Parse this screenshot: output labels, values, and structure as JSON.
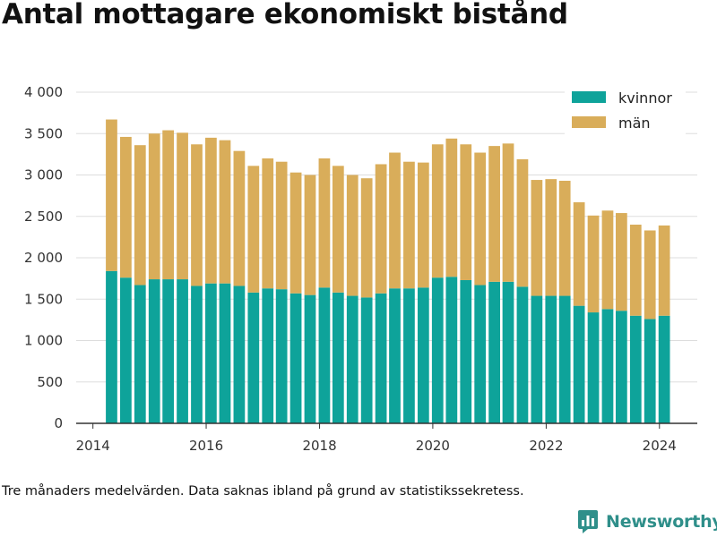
{
  "title": "Antal mottagare ekonomiskt bistånd",
  "caption": "Tre månaders medelvärden. Data saknas ibland på grund av statistikssekretess.",
  "brand": {
    "name": "Newsworthy",
    "icon": "newsworthy-logo-icon"
  },
  "colors": {
    "kvinnor": "#0ea39a",
    "man": "#d9ad5a",
    "grid": "#dddddd",
    "axis": "#333333",
    "brand": "#2f8f8a"
  },
  "chart_data": {
    "type": "bar",
    "stacked": true,
    "x_tick_labels": [
      "2014",
      "2016",
      "2018",
      "2020",
      "2022",
      "2024"
    ],
    "y_tick_labels": [
      "0",
      "500",
      "1 000",
      "1 500",
      "2 000",
      "2 500",
      "3 000",
      "3 500",
      "4 000"
    ],
    "ylim": [
      0,
      4000
    ],
    "xlim": [
      "2013-09-15",
      "2024-09-01"
    ],
    "grid": true,
    "legend_position": "top-right",
    "dates": [
      "2014-05-01",
      "2014-08-01",
      "2014-11-01",
      "2015-02-01",
      "2015-05-01",
      "2015-08-01",
      "2015-11-01",
      "2016-02-01",
      "2016-05-01",
      "2016-08-01",
      "2016-11-01",
      "2017-02-01",
      "2017-05-01",
      "2017-08-01",
      "2017-11-01",
      "2018-02-01",
      "2018-05-01",
      "2018-08-01",
      "2018-11-01",
      "2019-02-01",
      "2019-05-01",
      "2019-08-01",
      "2019-11-01",
      "2020-02-01",
      "2020-05-01",
      "2020-08-01",
      "2020-11-01",
      "2021-02-01",
      "2021-05-01",
      "2021-08-01",
      "2021-11-01",
      "2022-02-01",
      "2022-05-01",
      "2022-08-01",
      "2022-11-01",
      "2023-02-01",
      "2023-05-01",
      "2023-08-01",
      "2023-11-01",
      "2024-02-01"
    ],
    "series": [
      {
        "name": "kvinnor",
        "color": "#0ea39a",
        "values": [
          1840,
          1760,
          1670,
          1740,
          1740,
          1740,
          1660,
          1690,
          1690,
          1660,
          1580,
          1630,
          1620,
          1570,
          1550,
          1640,
          1580,
          1540,
          1520,
          1570,
          1630,
          1630,
          1640,
          1760,
          1770,
          1730,
          1670,
          1710,
          1710,
          1650,
          1540,
          1540,
          1540,
          1420,
          1340,
          1380,
          1360,
          1300,
          1260,
          1300
        ]
      },
      {
        "name": "män",
        "color": "#d9ad5a",
        "values": [
          1830,
          1700,
          1690,
          1760,
          1800,
          1770,
          1710,
          1760,
          1730,
          1630,
          1530,
          1570,
          1540,
          1460,
          1450,
          1560,
          1530,
          1460,
          1440,
          1560,
          1640,
          1530,
          1510,
          1610,
          1670,
          1640,
          1600,
          1640,
          1670,
          1540,
          1400,
          1410,
          1390,
          1250,
          1170,
          1190,
          1180,
          1100,
          1070,
          1090
        ]
      }
    ]
  }
}
